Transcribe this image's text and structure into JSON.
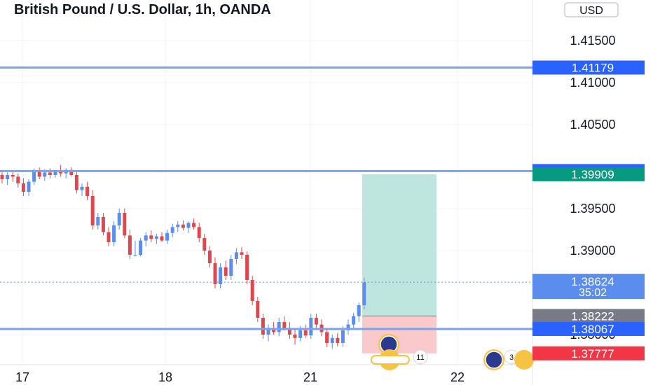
{
  "title": "British Pound / U.S. Dollar, 1h, OANDA",
  "currency_button": "USD",
  "colors": {
    "up": "#5b8def",
    "down": "#e0474c",
    "level_line": "#7ba2ec",
    "tag_blue": "#2962ff",
    "tag_green": "#089981",
    "tag_gray": "#787b86",
    "tag_red": "#f23645",
    "profit_zone": "#bfe5df",
    "loss_zone": "#f9c9cb"
  },
  "chart_data": {
    "type": "candlestick",
    "symbol": "GBPUSD",
    "interval": "1h",
    "source": "OANDA",
    "ylim": [
      1.376,
      1.42
    ],
    "y_ticks": [
      "1.41500",
      "1.41000",
      "1.40500",
      "1.39500",
      "1.39000",
      "1.38000"
    ],
    "x_ticks": [
      "17",
      "18",
      "21",
      "22"
    ],
    "horizontal_levels": [
      1.41179,
      1.39947,
      1.38067
    ],
    "price_tags": [
      {
        "label": "1.41179",
        "value": 1.41179,
        "kind": "level"
      },
      {
        "label": "1.39947",
        "value": 1.39947,
        "kind": "level"
      },
      {
        "label": "1.39909",
        "value": 1.39909,
        "kind": "target"
      },
      {
        "label": "1.38624",
        "sub": "35:02",
        "value": 1.38624,
        "kind": "last"
      },
      {
        "label": "1.38222",
        "value": 1.38222,
        "kind": "entry"
      },
      {
        "label": "1.38067",
        "value": 1.38067,
        "kind": "level"
      },
      {
        "label": "1.37777",
        "value": 1.37777,
        "kind": "stop"
      }
    ],
    "position": {
      "type": "long",
      "target": 1.39909,
      "entry": 1.38222,
      "stop": 1.37777
    },
    "event_badges": [
      "11",
      "3"
    ],
    "candles": [
      [
        1.399,
        1.3996,
        1.398,
        1.3985
      ],
      [
        1.3985,
        1.3993,
        1.3978,
        1.399
      ],
      [
        1.399,
        1.3995,
        1.3982,
        1.3988
      ],
      [
        1.3988,
        1.3992,
        1.3975,
        1.398
      ],
      [
        1.398,
        1.3986,
        1.3965,
        1.397
      ],
      [
        1.397,
        1.3985,
        1.3965,
        1.3982
      ],
      [
        1.3982,
        1.3998,
        1.3978,
        1.3995
      ],
      [
        1.3995,
        1.3999,
        1.3985,
        1.3988
      ],
      [
        1.3988,
        1.3997,
        1.3983,
        1.3993
      ],
      [
        1.3993,
        1.3998,
        1.3986,
        1.399
      ],
      [
        1.399,
        1.3996,
        1.3987,
        1.3994
      ],
      [
        1.3994,
        1.4002,
        1.3988,
        1.3992
      ],
      [
        1.3992,
        1.3998,
        1.3986,
        1.3996
      ],
      [
        1.3996,
        1.3999,
        1.3988,
        1.399
      ],
      [
        1.399,
        1.3994,
        1.3968,
        1.3972
      ],
      [
        1.3972,
        1.398,
        1.3965,
        1.3976
      ],
      [
        1.3976,
        1.3982,
        1.396,
        1.3965
      ],
      [
        1.3965,
        1.3972,
        1.3925,
        1.393
      ],
      [
        1.393,
        1.3945,
        1.3925,
        1.394
      ],
      [
        1.394,
        1.3945,
        1.3918,
        1.3922
      ],
      [
        1.3922,
        1.3928,
        1.3905,
        1.391
      ],
      [
        1.391,
        1.3935,
        1.3905,
        1.393
      ],
      [
        1.393,
        1.395,
        1.3925,
        1.3945
      ],
      [
        1.3945,
        1.395,
        1.3915,
        1.3918
      ],
      [
        1.3918,
        1.3925,
        1.389,
        1.3895
      ],
      [
        1.3895,
        1.3912,
        1.3893,
        1.3895
      ],
      [
        1.3895,
        1.3915,
        1.3893,
        1.3912
      ],
      [
        1.3912,
        1.3922,
        1.3905,
        1.3918
      ],
      [
        1.3918,
        1.3924,
        1.391,
        1.3914
      ],
      [
        1.3914,
        1.392,
        1.3908,
        1.3917
      ],
      [
        1.3917,
        1.3922,
        1.391,
        1.3912
      ],
      [
        1.3912,
        1.3925,
        1.3908,
        1.3921
      ],
      [
        1.3921,
        1.3932,
        1.3916,
        1.3928
      ],
      [
        1.3928,
        1.3935,
        1.3922,
        1.3931
      ],
      [
        1.3931,
        1.3936,
        1.3924,
        1.3927
      ],
      [
        1.3927,
        1.3935,
        1.3921,
        1.3933
      ],
      [
        1.3933,
        1.3938,
        1.3925,
        1.3928
      ],
      [
        1.3928,
        1.3933,
        1.391,
        1.3915
      ],
      [
        1.3915,
        1.392,
        1.3895,
        1.39
      ],
      [
        1.39,
        1.3905,
        1.388,
        1.3885
      ],
      [
        1.3885,
        1.3892,
        1.3855,
        1.386
      ],
      [
        1.386,
        1.3885,
        1.3855,
        1.388
      ],
      [
        1.388,
        1.3888,
        1.3865,
        1.387
      ],
      [
        1.387,
        1.3895,
        1.3865,
        1.389
      ],
      [
        1.389,
        1.3903,
        1.3884,
        1.3898
      ],
      [
        1.3898,
        1.3904,
        1.389,
        1.3895
      ],
      [
        1.3895,
        1.3899,
        1.386,
        1.3865
      ],
      [
        1.3865,
        1.387,
        1.3835,
        1.384
      ],
      [
        1.384,
        1.3845,
        1.3815,
        1.382
      ],
      [
        1.382,
        1.3825,
        1.3795,
        1.38
      ],
      [
        1.38,
        1.3812,
        1.3792,
        1.3808
      ],
      [
        1.3808,
        1.3815,
        1.38,
        1.3803
      ],
      [
        1.3803,
        1.382,
        1.3798,
        1.3815
      ],
      [
        1.3815,
        1.3822,
        1.3805,
        1.3808
      ],
      [
        1.3808,
        1.3815,
        1.3795,
        1.38
      ],
      [
        1.38,
        1.3806,
        1.3788,
        1.3796
      ],
      [
        1.3796,
        1.381,
        1.3792,
        1.3805
      ],
      [
        1.3805,
        1.3812,
        1.3796,
        1.3799
      ],
      [
        1.3799,
        1.3825,
        1.3795,
        1.382
      ],
      [
        1.382,
        1.3825,
        1.3808,
        1.3812
      ],
      [
        1.3812,
        1.3818,
        1.3798,
        1.3803
      ],
      [
        1.3803,
        1.3808,
        1.3785,
        1.379
      ],
      [
        1.379,
        1.38,
        1.3783,
        1.3796
      ],
      [
        1.3796,
        1.3802,
        1.3786,
        1.379
      ],
      [
        1.379,
        1.381,
        1.3785,
        1.3805
      ],
      [
        1.3805,
        1.3818,
        1.38,
        1.3812
      ],
      [
        1.3812,
        1.3826,
        1.3808,
        1.3822
      ],
      [
        1.3822,
        1.3838,
        1.3815,
        1.3835
      ],
      [
        1.3835,
        1.3868,
        1.383,
        1.3862
      ]
    ]
  }
}
